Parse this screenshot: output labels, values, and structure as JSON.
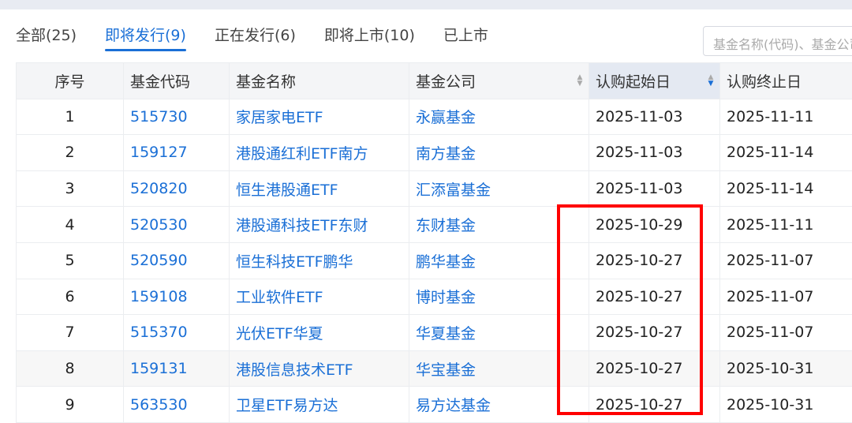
{
  "tabs": [
    {
      "label": "全部(25)"
    },
    {
      "label": "即将发行(9)",
      "active": true
    },
    {
      "label": "正在发行(6)"
    },
    {
      "label": "即将上市(10)"
    },
    {
      "label": "已上市"
    }
  ],
  "search": {
    "placeholder": "基金名称(代码)、基金公司"
  },
  "table": {
    "headers": [
      "序号",
      "基金代码",
      "基金名称",
      "基金公司",
      "认购起始日",
      "认购终止日"
    ],
    "sorted_column": "认购起始日",
    "sort_direction": "descending",
    "rows": [
      [
        "1",
        "515730",
        "家居家电ETF",
        "永赢基金",
        "2025-11-03",
        "2025-11-11"
      ],
      [
        "2",
        "159127",
        "港股通红利ETF南方",
        "南方基金",
        "2025-11-03",
        "2025-11-14"
      ],
      [
        "3",
        "520820",
        "恒生港股通ETF",
        "汇添富基金",
        "2025-11-03",
        "2025-11-14"
      ],
      [
        "4",
        "520530",
        "港股通科技ETF东财",
        "东财基金",
        "2025-10-29",
        "2025-11-11"
      ],
      [
        "5",
        "520590",
        "恒生科技ETF鹏华",
        "鹏华基金",
        "2025-10-27",
        "2025-11-07"
      ],
      [
        "6",
        "159108",
        "工业软件ETF",
        "博时基金",
        "2025-10-27",
        "2025-11-07"
      ],
      [
        "7",
        "515370",
        "光伏ETF华夏",
        "华夏基金",
        "2025-10-27",
        "2025-11-07"
      ],
      [
        "8",
        "159131",
        "港股信息技术ETF",
        "华宝基金",
        "2025-10-27",
        "2025-10-31"
      ],
      [
        "9",
        "563530",
        "卫星ETF易方达",
        "易方达基金",
        "2025-10-27",
        "2025-10-31"
      ]
    ]
  },
  "colors": {
    "accent": "#1a6fd6",
    "highlight_box": "#ff0000"
  }
}
